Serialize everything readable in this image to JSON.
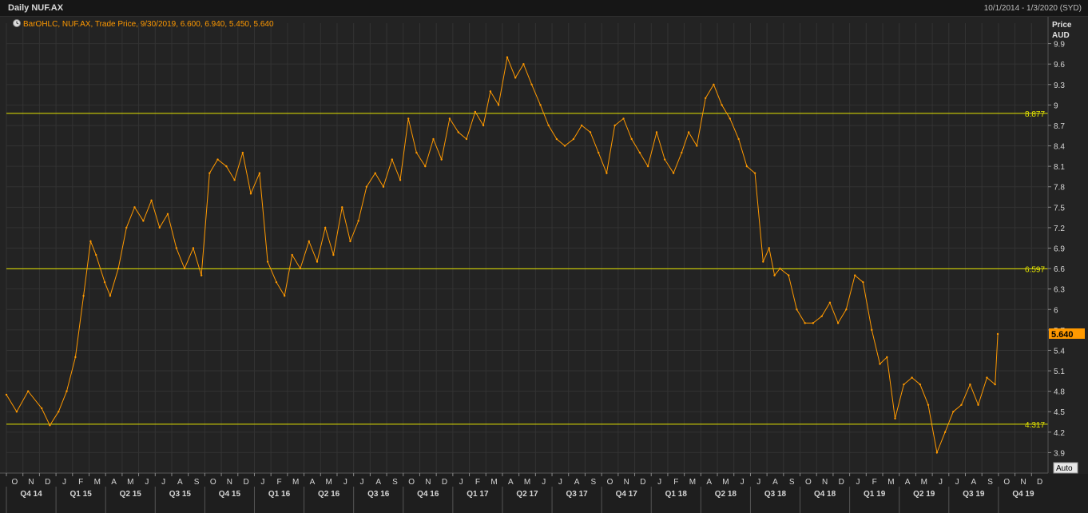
{
  "header": {
    "title": "Daily NUF.AX",
    "date_range": "10/1/2014 - 1/3/2020 (SYD)"
  },
  "colors": {
    "background": "#232323",
    "price_line": "#ff9900",
    "reference_lines": "#e6e600",
    "grid": "#333333",
    "axis_text": "#d6d6d6"
  },
  "chart_data": {
    "type": "line",
    "instrument": "NUF.AX",
    "legend_text": "BarOHLC, NUF.AX, Trade Price, 9/30/2019, 6.600, 6.940, 5.450, 5.640",
    "ylabel": "Price",
    "yunit": "AUD",
    "ylim": [
      3.6,
      10.2
    ],
    "y_ticks": [
      3.9,
      4.2,
      4.5,
      4.8,
      5.1,
      5.4,
      5.7,
      6,
      6.3,
      6.6,
      6.9,
      7.2,
      7.5,
      7.8,
      8.1,
      8.4,
      8.7,
      9,
      9.3,
      9.6,
      9.9
    ],
    "last_price_label": "5.640",
    "auto_label": "Auto",
    "horizontal_lines": [
      {
        "value": 8.877,
        "label": "8.877"
      },
      {
        "value": 6.597,
        "label": "6.597"
      },
      {
        "value": 4.317,
        "label": "4.317"
      }
    ],
    "months": [
      "O",
      "N",
      "D",
      "J",
      "F",
      "M",
      "A",
      "M",
      "J",
      "J",
      "A",
      "S",
      "O",
      "N",
      "D",
      "J",
      "F",
      "M",
      "A",
      "M",
      "J",
      "J",
      "A",
      "S",
      "O",
      "N",
      "D",
      "J",
      "F",
      "M",
      "A",
      "M",
      "J",
      "J",
      "A",
      "S",
      "O",
      "N",
      "D",
      "J",
      "F",
      "M",
      "A",
      "M",
      "J",
      "J",
      "A",
      "S",
      "O",
      "N",
      "D",
      "J",
      "F",
      "M",
      "A",
      "M",
      "J",
      "J",
      "A",
      "S",
      "O",
      "N",
      "D"
    ],
    "quarters": [
      "Q4 14",
      "Q1 15",
      "Q2 15",
      "Q3 15",
      "Q4 15",
      "Q1 16",
      "Q2 16",
      "Q3 16",
      "Q4 16",
      "Q1 17",
      "Q2 17",
      "Q3 17",
      "Q4 17",
      "Q1 18",
      "Q2 18",
      "Q3 18",
      "Q4 18",
      "Q1 19",
      "Q2 19",
      "Q3 19",
      "Q4 19"
    ],
    "series": [
      {
        "x": [
          "2014-10-01",
          "2014-10-20",
          "2014-11-10",
          "2014-12-05",
          "2014-12-20",
          "2015-01-05",
          "2015-01-20",
          "2015-02-05",
          "2015-02-20",
          "2015-03-05",
          "2015-03-15",
          "2015-03-31",
          "2015-04-10",
          "2015-04-25",
          "2015-05-10",
          "2015-05-25",
          "2015-06-10",
          "2015-06-25",
          "2015-07-10",
          "2015-07-25",
          "2015-08-10",
          "2015-08-25",
          "2015-09-10",
          "2015-09-25",
          "2015-10-10",
          "2015-10-25",
          "2015-11-10",
          "2015-11-25",
          "2015-12-10",
          "2015-12-25",
          "2016-01-10",
          "2016-01-25",
          "2016-02-10",
          "2016-02-25",
          "2016-03-10",
          "2016-03-25",
          "2016-04-10",
          "2016-04-25",
          "2016-05-10",
          "2016-05-25",
          "2016-06-10",
          "2016-06-25",
          "2016-07-10",
          "2016-07-25",
          "2016-08-10",
          "2016-08-25",
          "2016-09-10",
          "2016-09-25",
          "2016-10-10",
          "2016-10-25",
          "2016-11-10",
          "2016-11-25",
          "2016-12-10",
          "2016-12-25",
          "2017-01-10",
          "2017-01-25",
          "2017-02-10",
          "2017-02-25",
          "2017-03-10",
          "2017-03-25",
          "2017-04-10",
          "2017-04-25",
          "2017-05-10",
          "2017-05-25",
          "2017-06-10",
          "2017-06-25",
          "2017-07-10",
          "2017-07-25",
          "2017-08-10",
          "2017-08-25",
          "2017-09-10",
          "2017-09-25",
          "2017-10-10",
          "2017-10-25",
          "2017-11-10",
          "2017-11-25",
          "2017-12-10",
          "2017-12-25",
          "2018-01-10",
          "2018-01-25",
          "2018-02-10",
          "2018-02-25",
          "2018-03-10",
          "2018-03-25",
          "2018-04-10",
          "2018-04-25",
          "2018-05-10",
          "2018-05-25",
          "2018-06-10",
          "2018-06-25",
          "2018-07-10",
          "2018-07-25",
          "2018-08-05",
          "2018-08-15",
          "2018-08-25",
          "2018-09-10",
          "2018-09-25",
          "2018-10-10",
          "2018-10-25",
          "2018-11-10",
          "2018-11-25",
          "2018-12-10",
          "2018-12-25",
          "2019-01-10",
          "2019-01-25",
          "2019-02-10",
          "2019-02-25",
          "2019-03-10",
          "2019-03-25",
          "2019-04-10",
          "2019-04-25",
          "2019-05-10",
          "2019-05-25",
          "2019-06-10",
          "2019-06-25",
          "2019-07-10",
          "2019-07-25",
          "2019-08-10",
          "2019-08-25",
          "2019-09-10",
          "2019-09-25",
          "2019-09-30"
        ],
        "y": [
          4.75,
          4.5,
          4.8,
          4.55,
          4.3,
          4.5,
          4.8,
          5.3,
          6.2,
          7.0,
          6.8,
          6.4,
          6.2,
          6.6,
          7.2,
          7.5,
          7.3,
          7.6,
          7.2,
          7.4,
          6.9,
          6.6,
          6.9,
          6.5,
          8.0,
          8.2,
          8.1,
          7.9,
          8.3,
          7.7,
          8.0,
          6.7,
          6.4,
          6.2,
          6.8,
          6.6,
          7.0,
          6.7,
          7.2,
          6.8,
          7.5,
          7.0,
          7.3,
          7.8,
          8.0,
          7.8,
          8.2,
          7.9,
          8.8,
          8.3,
          8.1,
          8.5,
          8.2,
          8.8,
          8.6,
          8.5,
          8.9,
          8.7,
          9.2,
          9.0,
          9.7,
          9.4,
          9.6,
          9.3,
          9.0,
          8.7,
          8.5,
          8.4,
          8.5,
          8.7,
          8.6,
          8.3,
          8.0,
          8.7,
          8.8,
          8.5,
          8.3,
          8.1,
          8.6,
          8.2,
          8.0,
          8.3,
          8.6,
          8.4,
          9.1,
          9.3,
          9.0,
          8.8,
          8.5,
          8.1,
          8.0,
          6.7,
          6.9,
          6.5,
          6.6,
          6.5,
          6.0,
          5.8,
          5.8,
          5.9,
          6.1,
          5.8,
          6.0,
          6.5,
          6.4,
          5.7,
          5.2,
          5.3,
          4.4,
          4.9,
          5.0,
          4.9,
          4.6,
          3.9,
          4.2,
          4.5,
          4.6,
          4.9,
          4.6,
          5.0,
          4.9,
          5.64
        ]
      }
    ]
  }
}
